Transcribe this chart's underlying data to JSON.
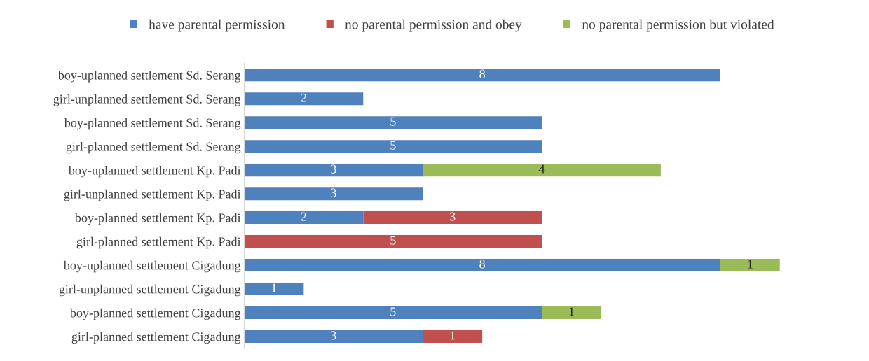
{
  "chart_data": {
    "type": "bar",
    "orientation": "horizontal",
    "stacked": true,
    "data_labels": true,
    "legend": "top",
    "grid": false,
    "categories": [
      "boy-uplanned settlement Sd. Serang",
      "girl-unplanned settlement Sd. Serang",
      "boy-planned settlement Sd. Serang",
      "girl-planned settlement Sd. Serang",
      "boy-uplanned settlement Kp. Padi",
      "girl-unplanned settlement Kp. Padi",
      "boy-planned settlement Kp. Padi",
      "girl-planned settlement Kp. Padi",
      "boy-uplanned settlement Cigadung",
      "girl-unplanned settlement Cigadung",
      "boy-planned settlement Cigadung",
      "girl-planned settlement Cigadung"
    ],
    "series": [
      {
        "name": "have parental permission",
        "color": "#4f81bd",
        "values": [
          8,
          2,
          5,
          5,
          3,
          3,
          2,
          null,
          8,
          1,
          5,
          3
        ]
      },
      {
        "name": "no parental permission and obey",
        "color": "#c0504d",
        "values": [
          null,
          null,
          null,
          null,
          null,
          null,
          3,
          5,
          null,
          null,
          null,
          1
        ]
      },
      {
        "name": "no parental permission but violated",
        "color": "#9bbb59",
        "values": [
          null,
          null,
          null,
          null,
          4,
          null,
          null,
          null,
          1,
          null,
          1,
          null
        ]
      }
    ]
  }
}
